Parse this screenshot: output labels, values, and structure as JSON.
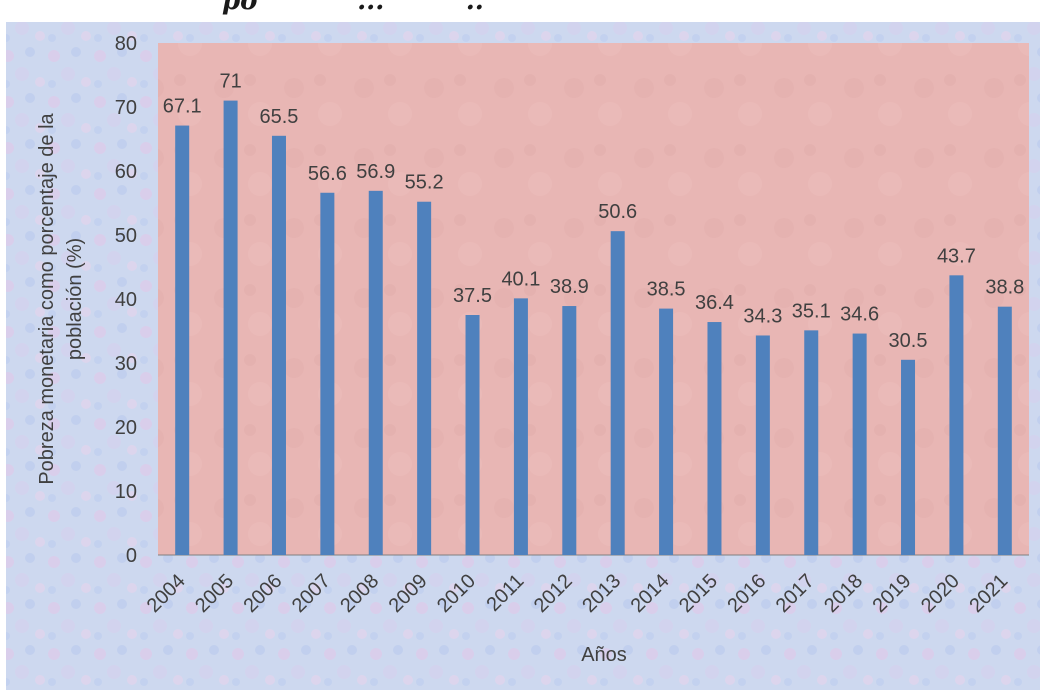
{
  "header_fragment": "põ           ...         ..",
  "chart_data": {
    "type": "bar",
    "title": "",
    "xlabel": "Años",
    "ylabel": "Pobreza monetaria como porcentaje de la población (%)",
    "ylabel_lines": [
      "Pobreza monetaria como porcentaje de la",
      "población (%)"
    ],
    "ylim": [
      0,
      80
    ],
    "yticks": [
      0,
      10,
      20,
      30,
      40,
      50,
      60,
      70,
      80
    ],
    "grid": false,
    "legend": "none",
    "categories": [
      "2004",
      "2005",
      "2006",
      "2007",
      "2008",
      "2009",
      "2010",
      "2011",
      "2012",
      "2013",
      "2014",
      "2015",
      "2016",
      "2017",
      "2018",
      "2019",
      "2020",
      "2021"
    ],
    "values": [
      67.1,
      71,
      65.5,
      56.6,
      56.9,
      55.2,
      37.5,
      40.1,
      38.9,
      50.6,
      38.5,
      36.4,
      34.3,
      35.1,
      34.6,
      30.5,
      43.7,
      38.8
    ],
    "value_labels": [
      "67.1",
      "71",
      "65.5",
      "56.6",
      "56.9",
      "55.2",
      "37.5",
      "40.1",
      "38.9",
      "50.6",
      "38.5",
      "36.4",
      "34.3",
      "35.1",
      "34.6",
      "30.5",
      "43.7",
      "38.8"
    ],
    "colors": {
      "bar": "#4f81bd",
      "plot_area": "#e8b6b4",
      "chart_background": "#cdd8ef",
      "text": "#404040",
      "axis": "#7f7f7f"
    }
  }
}
